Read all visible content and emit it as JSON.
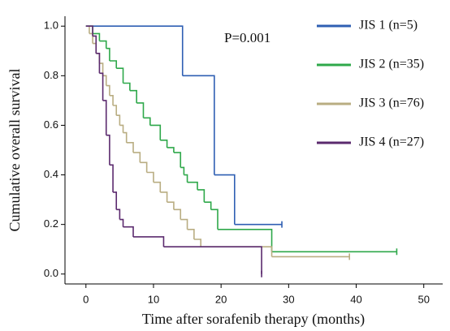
{
  "chart_data": {
    "type": "step",
    "xlabel": "Time after sorafenib therapy (months)",
    "ylabel": "Cumulative overall survival",
    "annotation": "P=0.001",
    "xlim": [
      -3.1,
      52.8
    ],
    "xticks": [
      0,
      10,
      20,
      30,
      40,
      50
    ],
    "ylim": [
      -0.04,
      1.04
    ],
    "yticks": [
      {
        "value": 0,
        "label": "0.0"
      },
      0.2,
      0.4,
      0.6,
      0.8,
      {
        "value": 1,
        "label": "1.0"
      }
    ],
    "series": [
      {
        "name": "JIS 1 (n=5)",
        "color": "#2f5fb3",
        "x": [
          0,
          14.3,
          19,
          22,
          29
        ],
        "values": [
          1,
          0.8,
          0.4,
          0.2,
          0.2
        ]
      },
      {
        "name": "JIS 2 (n=35)",
        "color": "#2ea84a",
        "x": [
          0,
          1,
          2,
          3,
          3.5,
          4.5,
          5.5,
          6.5,
          7.5,
          8.5,
          9.5,
          11,
          12,
          13,
          14,
          14.5,
          15,
          16.5,
          17.5,
          18.5,
          19.5,
          27.5,
          46
        ],
        "values": [
          1,
          0.97,
          0.94,
          0.91,
          0.86,
          0.83,
          0.77,
          0.74,
          0.69,
          0.63,
          0.6,
          0.54,
          0.51,
          0.49,
          0.43,
          0.4,
          0.37,
          0.34,
          0.29,
          0.26,
          0.18,
          0.09,
          0.09
        ]
      },
      {
        "name": "JIS 3 (n=76)",
        "color": "#b9ad82",
        "x": [
          0,
          0.5,
          1,
          1.5,
          2,
          2.5,
          3,
          3.5,
          4,
          4.5,
          5,
          5.5,
          6,
          7,
          8,
          9,
          10,
          11,
          12,
          13,
          14,
          15,
          16,
          17,
          27.5,
          39
        ],
        "values": [
          1,
          0.97,
          0.93,
          0.89,
          0.85,
          0.8,
          0.76,
          0.72,
          0.68,
          0.64,
          0.6,
          0.57,
          0.53,
          0.49,
          0.45,
          0.41,
          0.37,
          0.33,
          0.29,
          0.26,
          0.22,
          0.18,
          0.14,
          0.11,
          0.07,
          0.07
        ]
      },
      {
        "name": "JIS 4 (n=27)",
        "color": "#5b2a6e",
        "x": [
          0,
          1,
          1.5,
          2,
          2.5,
          3,
          3.5,
          4,
          4.5,
          5,
          5.5,
          7,
          11.5,
          26
        ],
        "values": [
          1,
          0.96,
          0.89,
          0.81,
          0.7,
          0.56,
          0.44,
          0.33,
          0.26,
          0.22,
          0.19,
          0.15,
          0.11,
          0
        ]
      }
    ]
  }
}
